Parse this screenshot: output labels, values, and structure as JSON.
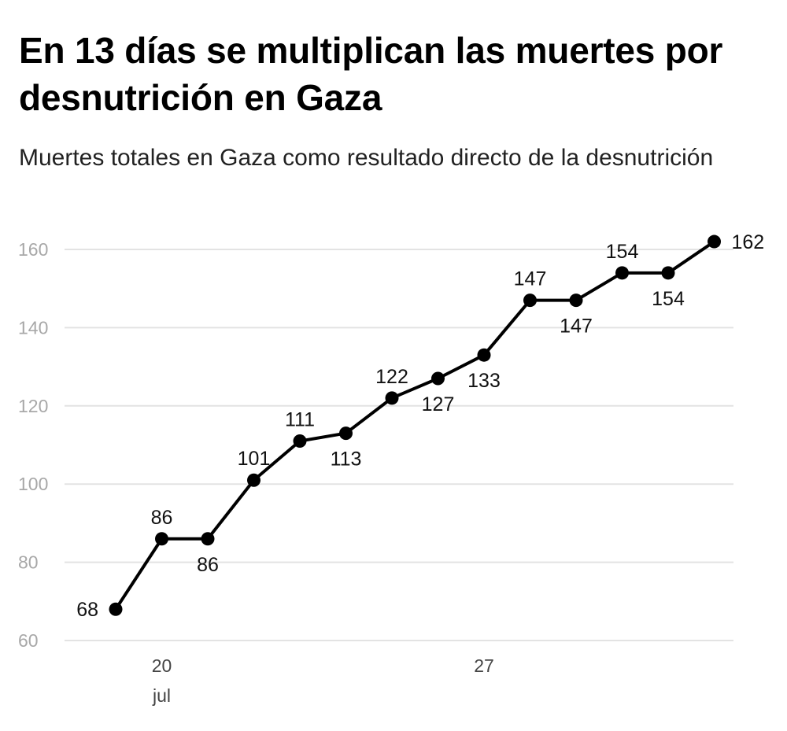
{
  "header": {
    "title": "En 13 días se multiplican las muertes por desnutrición en Gaza",
    "subtitle": "Muertes totales en Gaza como resultado directo de la desnutrición"
  },
  "colors": {
    "line": "#000000",
    "grid": "#e3e3e3",
    "axis_label": "#a8a8a8"
  },
  "chart_data": {
    "type": "line",
    "title": "En 13 días se multiplican las muertes por desnutrición en Gaza",
    "subtitle": "Muertes totales en Gaza como resultado directo de la desnutrición",
    "xlabel": "",
    "ylabel": "",
    "ylim": [
      60,
      160
    ],
    "yticks": [
      60,
      80,
      100,
      120,
      140,
      160
    ],
    "grid": true,
    "x": [
      19,
      20,
      21,
      22,
      23,
      24,
      25,
      26,
      27,
      28,
      29,
      30,
      31,
      32
    ],
    "x_ticks": [
      {
        "day": 20,
        "label": "20",
        "sublabel": "jul"
      },
      {
        "day": 27,
        "label": "27",
        "sublabel": ""
      }
    ],
    "series": [
      {
        "name": "Muertes totales",
        "values": [
          68,
          86,
          86,
          101,
          111,
          113,
          122,
          127,
          133,
          147,
          147,
          154,
          154,
          162
        ],
        "label_pos": [
          "left",
          "above",
          "below",
          "above",
          "above",
          "below",
          "above",
          "below",
          "below",
          "above",
          "below",
          "above",
          "below",
          "right"
        ]
      }
    ]
  }
}
